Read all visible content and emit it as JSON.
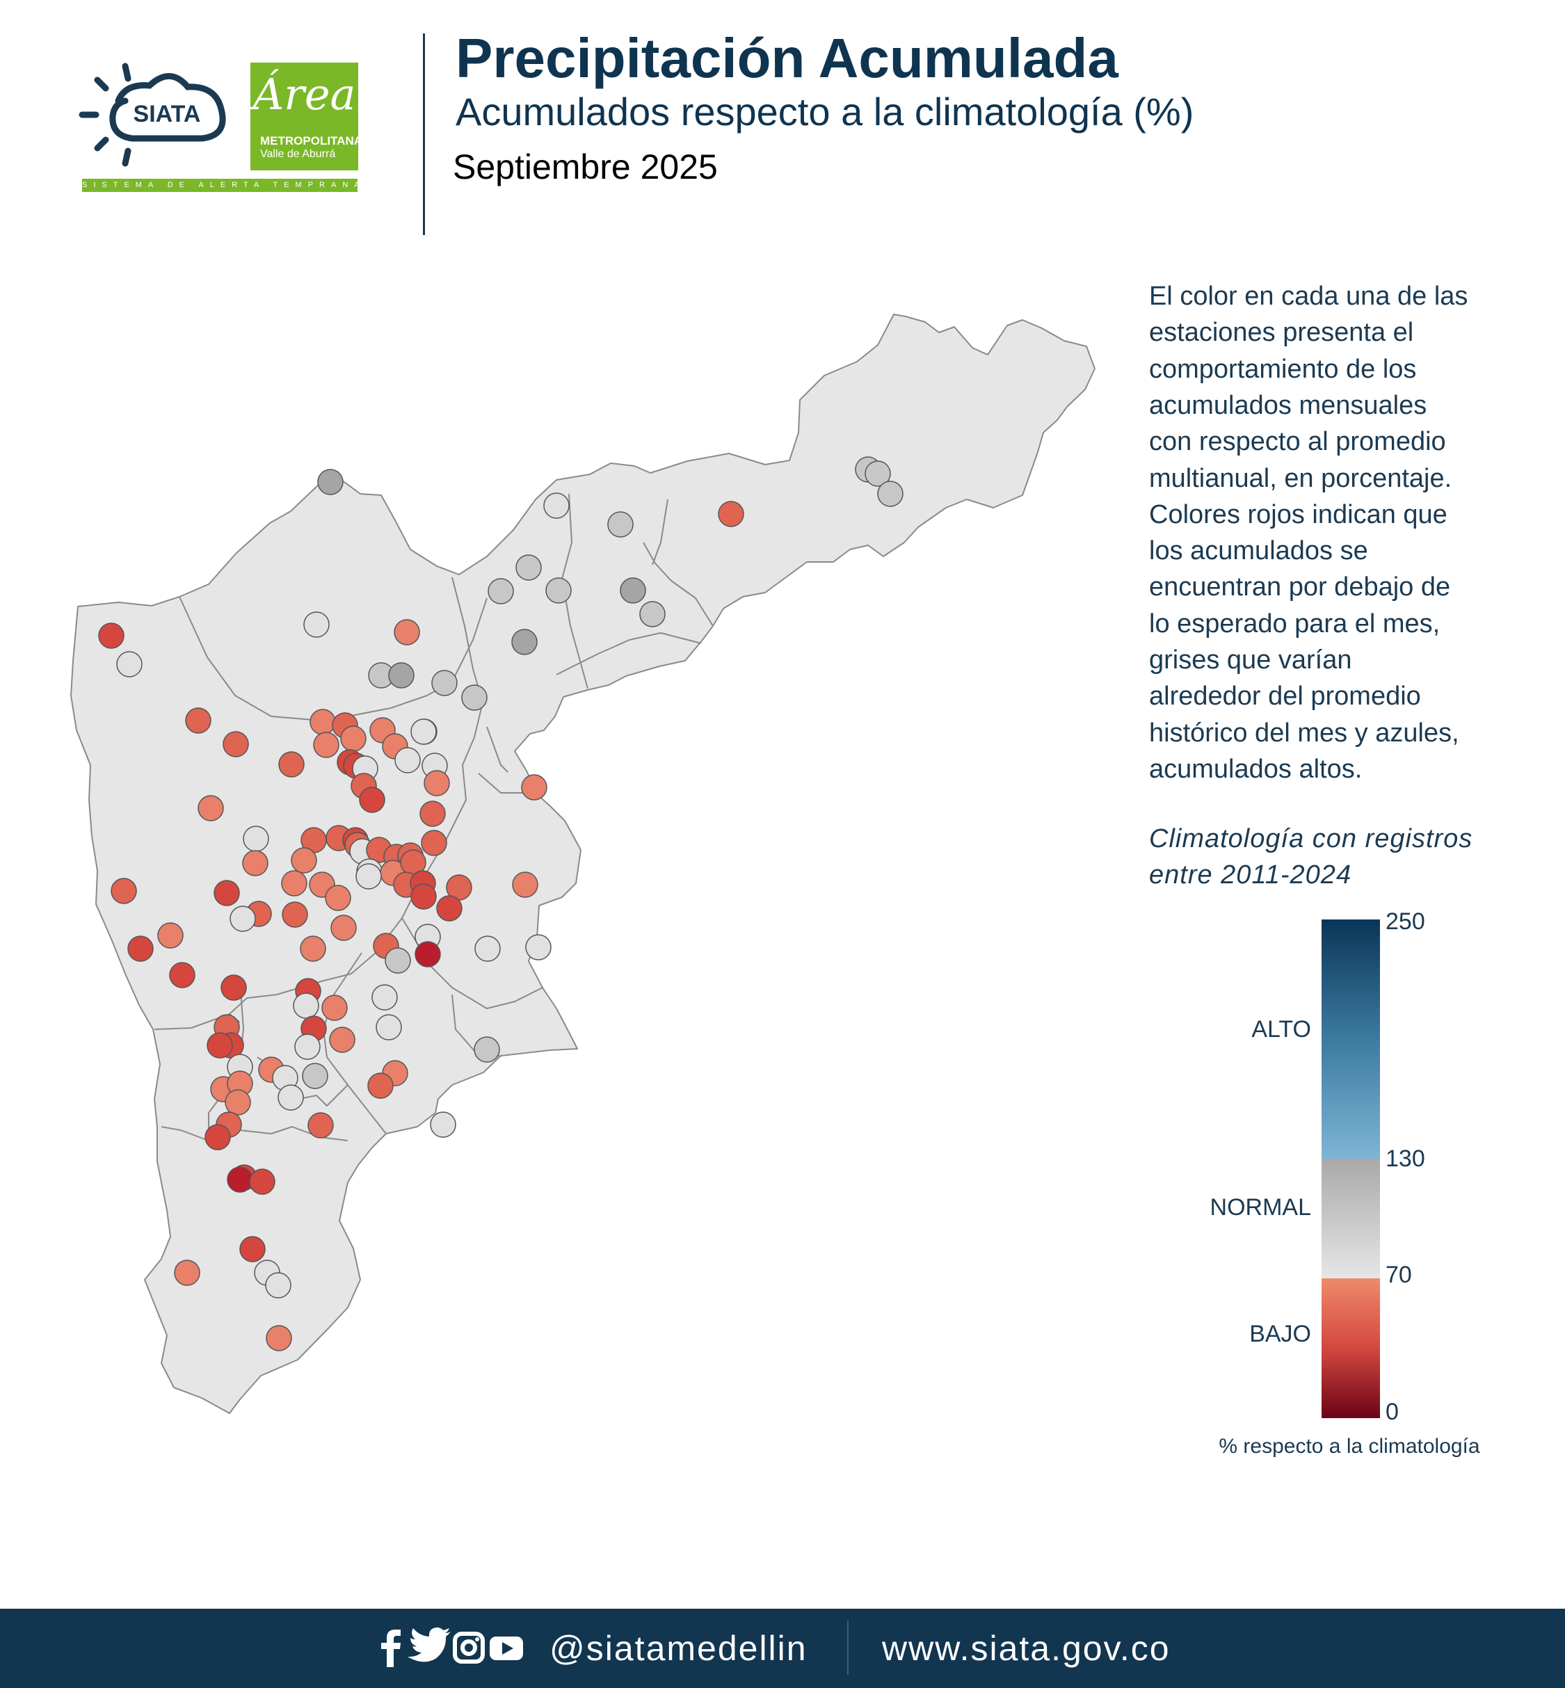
{
  "header": {
    "siata_logo_text": "SIATA",
    "siata_tagline": "SISTEMA DE ALERTA TEMPRANA",
    "area_logo_word": "Área",
    "area_logo_name": "METROPOLITANA",
    "area_logo_sub": "Valle de Aburrá",
    "title": "Precipitación Acumulada",
    "subtitle": "Acumulados respecto a la climatología (%)",
    "period": "Septiembre 2025"
  },
  "description_lines": [
    "El color en cada una de las",
    "estaciones presenta el",
    "comportamiento de los",
    "acumulados mensuales",
    "con respecto al promedio",
    "multianual, en porcentaje.",
    "Colores rojos indican que",
    "los acumulados se",
    "encuentran por debajo de",
    "lo esperado para el mes,",
    "grises que varían",
    "alrededor del promedio",
    "histórico del mes y azules,",
    "acumulados altos."
  ],
  "climatology_lines": [
    "Climatología con registros",
    "entre 2011-2024"
  ],
  "legend": {
    "ticks": [
      "250",
      "130",
      "70",
      "0"
    ],
    "categories": {
      "high": "ALTO",
      "normal": "NORMAL",
      "low": "BAJO"
    },
    "caption": "% respecto a la climatología",
    "colors": {
      "alto_top": "#0a3557",
      "alto_mid": "#3d7aa0",
      "alto_bottom": "#7eb5d6",
      "normal_top": "#a9a9a9",
      "normal_bottom": "#e6e6e6",
      "bajo_top": "#ee8a6a",
      "bajo_mid": "#d34840",
      "bajo_bottom": "#6b0318"
    }
  },
  "map": {
    "region_fill": "#e6e6e6",
    "border_color": "#8a8a8a",
    "station_colors": {
      "red_light": "#e8806a",
      "red_mid": "#df6452",
      "red": "#d5473e",
      "red_dark": "#ba1e2c",
      "grey_light": "#e1e1e1",
      "grey": "#c7c7c7",
      "grey_dark": "#a5a5a5"
    }
  },
  "footer": {
    "social_icons": [
      "facebook-icon",
      "twitter-icon",
      "instagram-icon",
      "youtube-icon"
    ],
    "handle": "@siatamedellin",
    "url": "www.siata.gov.co"
  }
}
